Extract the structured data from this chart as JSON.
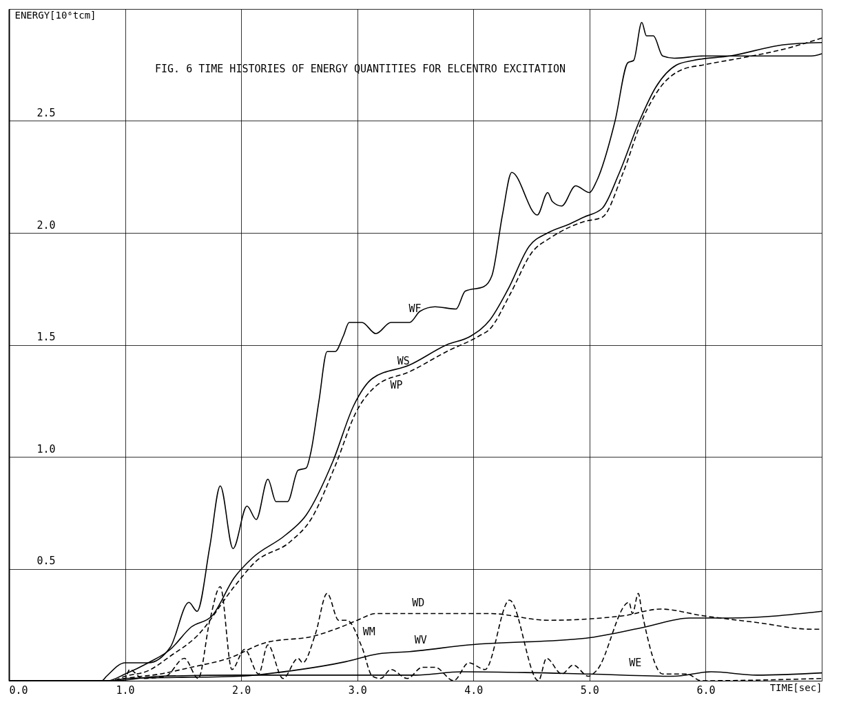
{
  "chart_data": {
    "type": "line",
    "title": "FIG. 6   TIME HISTORIES OF ENERGY QUANTITIES FOR ELCENTRO EXCITATION",
    "xlabel": "TIME[sec]",
    "ylabel": "ENERGY[10⁶tcm]",
    "xlim": [
      0,
      7.0
    ],
    "ylim": [
      0,
      3.0
    ],
    "xticks": [
      {
        "value": 0,
        "label": "0.0"
      },
      {
        "value": 1,
        "label": "1.0"
      },
      {
        "value": 2,
        "label": "2.0"
      },
      {
        "value": 3,
        "label": "3.0"
      },
      {
        "value": 4,
        "label": "4.0"
      },
      {
        "value": 5,
        "label": "5.0"
      },
      {
        "value": 6,
        "label": "6.0"
      },
      {
        "value": 7,
        "label": null
      }
    ],
    "yticks": [
      {
        "value": 0,
        "label": null
      },
      0.5,
      {
        "value": 1,
        "label": "1.0"
      },
      1.5,
      {
        "value": 2,
        "label": "2.0"
      },
      2.5,
      {
        "value": 3,
        "label": null
      }
    ],
    "grid": true,
    "series": [
      {
        "name": "WF",
        "color": "#000000",
        "line_style": "solid",
        "x": [
          0,
          0.8,
          0.84,
          1.0,
          1.2,
          1.39,
          1.55,
          1.62,
          1.73,
          1.82,
          1.93,
          2.05,
          2.13,
          2.23,
          2.3,
          2.4,
          2.49,
          2.56,
          2.6,
          2.67,
          2.74,
          2.81,
          2.88,
          2.93,
          3.04,
          3.16,
          3.29,
          3.45,
          3.54,
          3.67,
          3.85,
          3.93,
          4.09,
          4.16,
          4.25,
          4.33,
          4.55,
          4.64,
          4.68,
          4.76,
          4.88,
          5.0,
          5.06,
          5.22,
          5.33,
          5.38,
          5.45,
          5.49,
          5.55,
          5.63,
          5.73,
          5.98,
          6.44,
          6.91,
          7.0
        ],
        "values": [
          0,
          0,
          0.02,
          0.08,
          0.08,
          0.15,
          0.35,
          0.31,
          0.6,
          0.87,
          0.59,
          0.78,
          0.72,
          0.9,
          0.8,
          0.8,
          0.94,
          0.95,
          1.02,
          1.25,
          1.47,
          1.47,
          1.54,
          1.6,
          1.6,
          1.55,
          1.6,
          1.6,
          1.65,
          1.67,
          1.66,
          1.74,
          1.76,
          1.81,
          2.08,
          2.27,
          2.08,
          2.18,
          2.14,
          2.12,
          2.21,
          2.18,
          2.23,
          2.5,
          2.76,
          2.77,
          2.94,
          2.88,
          2.88,
          2.79,
          2.78,
          2.79,
          2.79,
          2.79,
          2.8
        ]
      },
      {
        "name": "WS",
        "color": "#000000",
        "line_style": "solid",
        "x": [
          0,
          0.85,
          1.0,
          1.2,
          1.39,
          1.57,
          1.75,
          1.94,
          2.1,
          2.38,
          2.56,
          2.79,
          2.97,
          3.13,
          3.45,
          3.77,
          3.98,
          4.14,
          4.3,
          4.48,
          4.64,
          4.83,
          4.95,
          5.11,
          5.25,
          5.43,
          5.57,
          5.75,
          5.89,
          6.21,
          6.67,
          7.0
        ],
        "values": [
          0,
          0,
          0.03,
          0.08,
          0.14,
          0.24,
          0.29,
          0.46,
          0.55,
          0.65,
          0.74,
          0.98,
          1.23,
          1.35,
          1.41,
          1.5,
          1.54,
          1.61,
          1.75,
          1.94,
          2.0,
          2.04,
          2.07,
          2.11,
          2.26,
          2.5,
          2.65,
          2.75,
          2.77,
          2.79,
          2.84,
          2.85
        ]
      },
      {
        "name": "WP",
        "color": "#000000",
        "line_style": "dashed",
        "x": [
          0,
          0.88,
          1.0,
          1.2,
          1.39,
          1.62,
          1.94,
          2.12,
          2.42,
          2.6,
          2.81,
          2.99,
          3.17,
          3.45,
          3.77,
          4.05,
          4.14,
          4.32,
          4.5,
          4.67,
          4.95,
          5.11,
          5.29,
          5.45,
          5.61,
          5.8,
          5.98,
          6.4,
          6.67,
          7.0
        ],
        "values": [
          0,
          0,
          0.02,
          0.045,
          0.11,
          0.2,
          0.42,
          0.53,
          0.62,
          0.72,
          0.96,
          1.2,
          1.32,
          1.38,
          1.47,
          1.54,
          1.57,
          1.73,
          1.91,
          1.98,
          2.05,
          2.07,
          2.27,
          2.5,
          2.65,
          2.73,
          2.75,
          2.79,
          2.82,
          2.87
        ]
      },
      {
        "name": "WD",
        "color": "#000000",
        "line_style": "dashed",
        "x": [
          0,
          0.9,
          1.0,
          1.3,
          1.57,
          1.89,
          2.21,
          2.63,
          2.86,
          3.0,
          3.16,
          3.45,
          4.14,
          4.64,
          5.29,
          5.61,
          5.98,
          6.44,
          6.91,
          7.0
        ],
        "values": [
          0,
          0,
          0.01,
          0.03,
          0.06,
          0.1,
          0.17,
          0.2,
          0.24,
          0.27,
          0.3,
          0.3,
          0.3,
          0.27,
          0.29,
          0.32,
          0.29,
          0.26,
          0.23,
          0.23
        ]
      },
      {
        "name": "WV",
        "color": "#000000",
        "line_style": "solid",
        "x": [
          0,
          0.9,
          1.0,
          1.98,
          2.44,
          2.9,
          3.18,
          3.45,
          3.96,
          4.97,
          5.48,
          5.86,
          6.21,
          7.0
        ],
        "values": [
          0,
          0,
          0.01,
          0.02,
          0.045,
          0.085,
          0.12,
          0.13,
          0.16,
          0.19,
          0.24,
          0.28,
          0.28,
          0.31
        ]
      },
      {
        "name": "WM",
        "color": "#000000",
        "line_style": "dashed",
        "x": [
          0,
          0.9,
          1.0,
          1.04,
          1.15,
          1.35,
          1.51,
          1.63,
          1.73,
          1.82,
          1.92,
          2.03,
          2.15,
          2.23,
          2.36,
          2.49,
          2.53,
          2.64,
          2.74,
          2.84,
          2.91,
          3.04,
          3.13,
          3.2,
          3.29,
          3.43,
          3.56,
          3.67,
          3.83,
          3.96,
          4.1,
          4.31,
          4.56,
          4.63,
          4.76,
          4.86,
          4.99,
          5.06,
          5.34,
          5.37,
          5.42,
          5.45,
          5.63,
          5.84,
          5.96,
          7.0
        ],
        "values": [
          0,
          0,
          0.01,
          0.05,
          0.01,
          0.02,
          0.1,
          0.01,
          0.27,
          0.42,
          0.05,
          0.14,
          0.03,
          0.16,
          0.01,
          0.1,
          0.08,
          0.21,
          0.39,
          0.27,
          0.27,
          0.15,
          0.02,
          0.01,
          0.05,
          0.01,
          0.06,
          0.06,
          0.0,
          0.08,
          0.05,
          0.36,
          0.0,
          0.1,
          0.03,
          0.07,
          0.02,
          0.045,
          0.35,
          0.3,
          0.39,
          0.31,
          0.03,
          0.03,
          0.0,
          0.01
        ]
      },
      {
        "name": "WE",
        "color": "#000000",
        "line_style": "solid",
        "x": [
          0,
          0.9,
          1.3,
          1.98,
          3.5,
          3.9,
          5.0,
          5.72,
          6.05,
          6.44,
          7.0
        ],
        "values": [
          0,
          0,
          0.02,
          0.025,
          0.025,
          0.04,
          0.03,
          0.02,
          0.04,
          0.025,
          0.035
        ]
      }
    ]
  }
}
